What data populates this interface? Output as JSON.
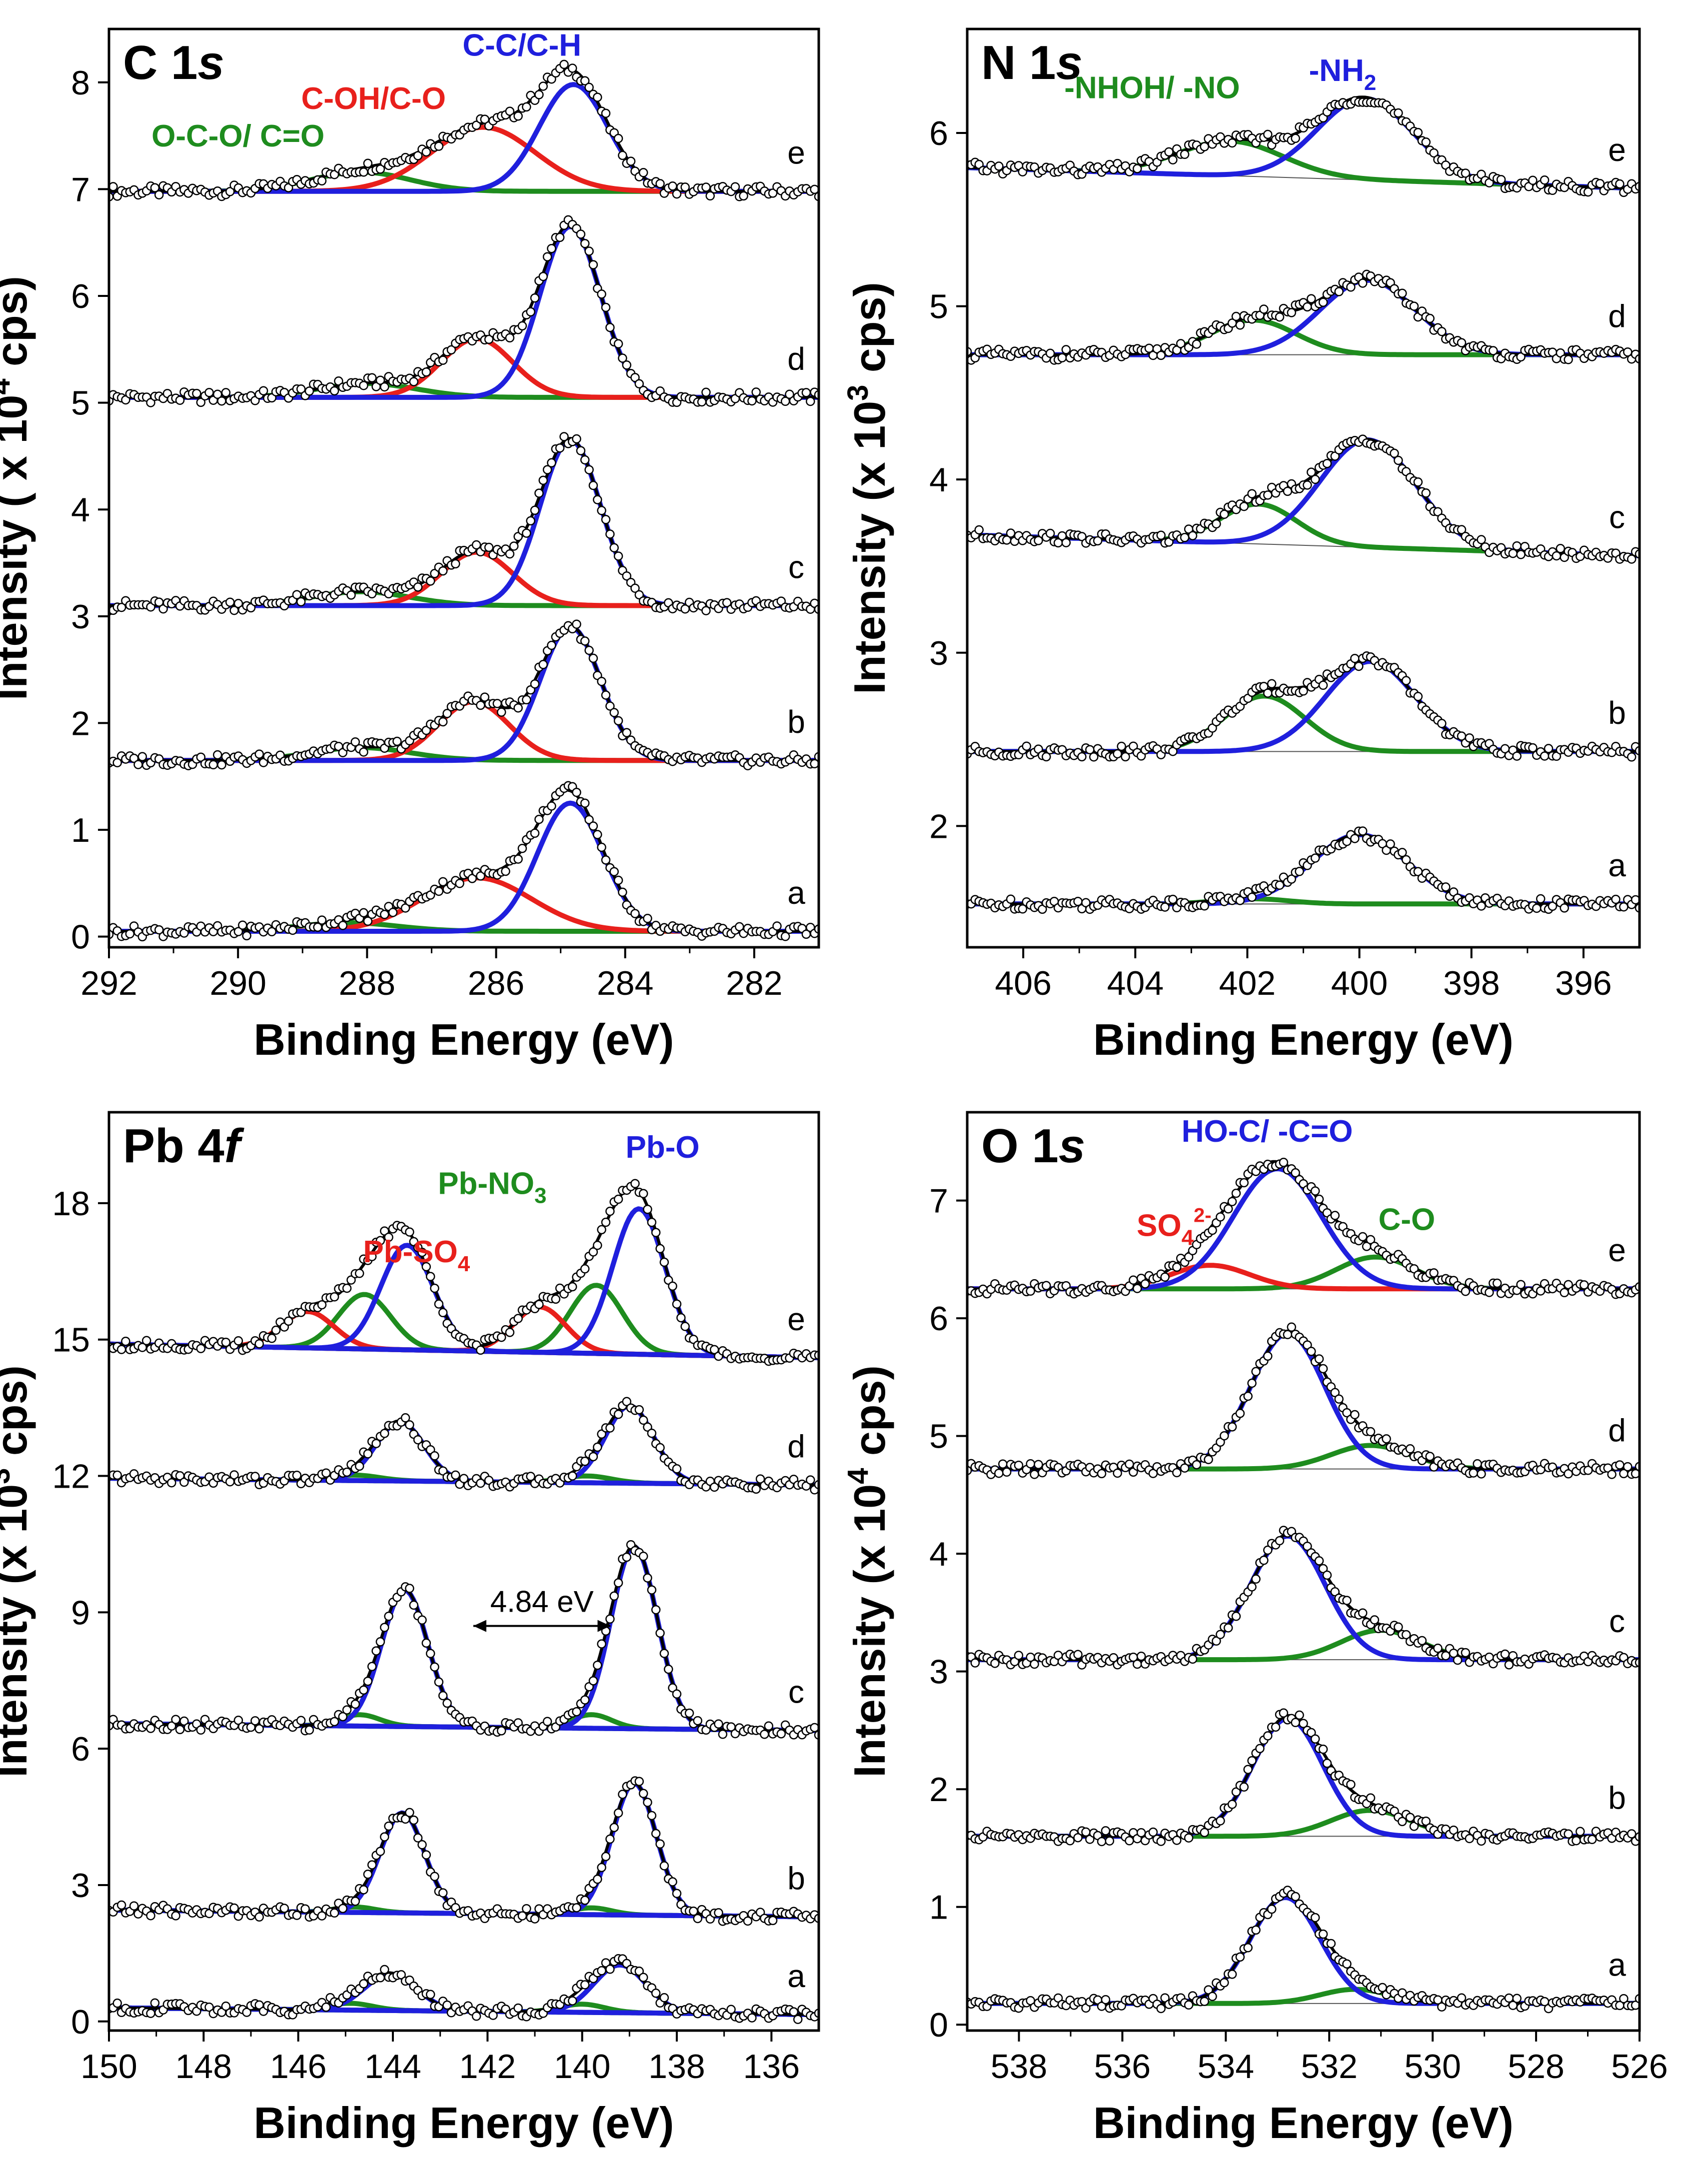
{
  "colors": {
    "raw": "#000000",
    "envelope": "#000000",
    "blue": "#1f1fdd",
    "red": "#e8201c",
    "green": "#1e8c1e",
    "baseline_thin": "#555555"
  },
  "chart_data": [
    {
      "id": "c1s",
      "type": "line",
      "title_main": "C 1",
      "title_suffix": "s",
      "xlabel": "Binding Energy (eV)",
      "ylabel": "Intensity ( x 10",
      "ylabel_sup": "4",
      "ylabel_tail": " cps)",
      "xlim": [
        292,
        281
      ],
      "ylim": [
        -0.1,
        8.5
      ],
      "xticks": [
        "292",
        "290",
        "288",
        "286",
        "284",
        "282"
      ],
      "xtick_values": [
        292,
        290,
        288,
        286,
        284,
        282
      ],
      "yticks": [
        "0",
        "1",
        "2",
        "3",
        "4",
        "5",
        "6",
        "7",
        "8"
      ],
      "ytick_values": [
        0,
        1,
        2,
        3,
        4,
        5,
        6,
        7,
        8
      ],
      "peak_labels": [
        {
          "text": "C-C/C-H",
          "color": "blue",
          "x": 285.6,
          "y": 8.25
        },
        {
          "text": "C-OH/C-O",
          "color": "red",
          "x": 287.9,
          "y": 7.75
        },
        {
          "text": "O-C-O/ C=O",
          "color": "green",
          "x": 290.0,
          "y": 7.4
        }
      ],
      "series": [
        {
          "name": "e",
          "baseline": 6.98,
          "slope": 0.0,
          "peaks": [
            {
              "component": "C-C/C-H",
              "center": 284.8,
              "height": 1.0,
              "fwhm": 1.25,
              "color": "blue"
            },
            {
              "component": "C-OH/C-O",
              "center": 286.2,
              "height": 0.6,
              "fwhm": 1.9,
              "color": "red"
            },
            {
              "component": "O-C-O/ C=O",
              "center": 288.1,
              "height": 0.18,
              "fwhm": 1.8,
              "color": "green"
            }
          ]
        },
        {
          "name": "d",
          "baseline": 5.05,
          "slope": 0.0,
          "peaks": [
            {
              "component": "C-C/C-H",
              "center": 284.85,
              "height": 1.6,
              "fwhm": 1.1,
              "color": "blue"
            },
            {
              "component": "C-OH/C-O",
              "center": 286.3,
              "height": 0.55,
              "fwhm": 1.3,
              "color": "red"
            },
            {
              "component": "O-C-O/ C=O",
              "center": 288.0,
              "height": 0.13,
              "fwhm": 1.8,
              "color": "green"
            }
          ]
        },
        {
          "name": "c",
          "baseline": 3.1,
          "slope": 0.0,
          "peaks": [
            {
              "component": "C-C/C-H",
              "center": 284.85,
              "height": 1.55,
              "fwhm": 1.1,
              "color": "blue"
            },
            {
              "component": "C-OH/C-O",
              "center": 286.3,
              "height": 0.5,
              "fwhm": 1.3,
              "color": "red"
            },
            {
              "component": "O-C-O/ C=O",
              "center": 288.1,
              "height": 0.13,
              "fwhm": 1.8,
              "color": "green"
            }
          ]
        },
        {
          "name": "b",
          "baseline": 1.65,
          "slope": 0.0,
          "peaks": [
            {
              "component": "C-C/C-H",
              "center": 284.85,
              "height": 1.25,
              "fwhm": 1.1,
              "color": "blue"
            },
            {
              "component": "C-OH/C-O",
              "center": 286.35,
              "height": 0.55,
              "fwhm": 1.3,
              "color": "red"
            },
            {
              "component": "O-C-O/ C=O",
              "center": 288.1,
              "height": 0.12,
              "fwhm": 1.8,
              "color": "green"
            }
          ]
        },
        {
          "name": "a",
          "baseline": 0.05,
          "slope": 0.0,
          "peaks": [
            {
              "component": "C-C/C-H",
              "center": 284.85,
              "height": 1.2,
              "fwhm": 1.2,
              "color": "blue"
            },
            {
              "component": "C-OH/C-O",
              "center": 286.3,
              "height": 0.5,
              "fwhm": 2.0,
              "color": "red"
            },
            {
              "component": "O-C-O/ C=O",
              "center": 288.3,
              "height": 0.08,
              "fwhm": 1.8,
              "color": "green"
            }
          ]
        }
      ]
    },
    {
      "id": "n1s",
      "type": "line",
      "title_main": "N 1",
      "title_suffix": "s",
      "xlabel": "Binding Energy (eV)",
      "ylabel": "Intensity (x 10",
      "ylabel_sup": "3",
      "ylabel_tail": " cps)",
      "xlim": [
        407,
        395
      ],
      "ylim": [
        1.3,
        6.6
      ],
      "xticks": [
        "406",
        "404",
        "402",
        "400",
        "398",
        "396"
      ],
      "xtick_values": [
        406,
        404,
        402,
        400,
        398,
        396
      ],
      "yticks": [
        "2",
        "3",
        "4",
        "5",
        "6"
      ],
      "ytick_values": [
        2,
        3,
        4,
        5,
        6
      ],
      "peak_labels": [
        {
          "text": "-NHOH/ -NO",
          "color": "green",
          "x": 403.7,
          "y": 6.2
        },
        {
          "text": "-NH",
          "sub": "2",
          "color": "blue",
          "x": 400.3,
          "y": 6.3
        }
      ],
      "series": [
        {
          "name": "e",
          "baseline": 5.68,
          "slope": 0.01,
          "peaks": [
            {
              "component": "-NH2",
              "center": 399.9,
              "height": 0.47,
              "fwhm": 2.0,
              "color": "blue"
            },
            {
              "component": "-NHOH/ -NO",
              "center": 402.3,
              "height": 0.2,
              "fwhm": 2.2,
              "color": "green"
            }
          ]
        },
        {
          "name": "d",
          "baseline": 4.72,
          "slope": 0.0,
          "peaks": [
            {
              "component": "-NH2",
              "center": 399.85,
              "height": 0.43,
              "fwhm": 2.0,
              "color": "blue"
            },
            {
              "component": "-NHOH/ -NO",
              "center": 401.9,
              "height": 0.2,
              "fwhm": 1.8,
              "color": "green"
            }
          ]
        },
        {
          "name": "c",
          "baseline": 3.56,
          "slope": 0.01,
          "peaks": [
            {
              "component": "-NH2",
              "center": 399.85,
              "height": 0.62,
              "fwhm": 2.0,
              "color": "blue"
            },
            {
              "component": "-NHOH/ -NO",
              "center": 401.8,
              "height": 0.23,
              "fwhm": 1.6,
              "color": "green"
            }
          ]
        },
        {
          "name": "b",
          "baseline": 2.43,
          "slope": 0.0,
          "peaks": [
            {
              "component": "-NH2",
              "center": 399.8,
              "height": 0.52,
              "fwhm": 1.9,
              "color": "blue"
            },
            {
              "component": "-NHOH/ -NO",
              "center": 401.7,
              "height": 0.32,
              "fwhm": 1.7,
              "color": "green"
            }
          ]
        },
        {
          "name": "a",
          "baseline": 1.55,
          "slope": 0.0,
          "peaks": [
            {
              "component": "-NH2",
              "center": 400.0,
              "height": 0.4,
              "fwhm": 2.0,
              "color": "blue"
            },
            {
              "component": "-NHOH/ -NO",
              "center": 401.9,
              "height": 0.03,
              "fwhm": 1.5,
              "color": "green"
            }
          ]
        }
      ]
    },
    {
      "id": "pb4f",
      "type": "line",
      "title_main": "Pb 4",
      "title_suffix": "f",
      "xlabel": "Binding Energy (eV)",
      "ylabel": "Intensity (x 10",
      "ylabel_sup": "3",
      "ylabel_tail": " cps)",
      "xlim": [
        150,
        135
      ],
      "ylim": [
        -0.2,
        20.0
      ],
      "xticks": [
        "150",
        "148",
        "146",
        "144",
        "142",
        "140",
        "138",
        "136"
      ],
      "xtick_values": [
        150,
        148,
        146,
        144,
        142,
        140,
        138,
        136
      ],
      "yticks": [
        "0",
        "3",
        "6",
        "9",
        "12",
        "15",
        "18"
      ],
      "ytick_values": [
        0,
        3,
        6,
        9,
        12,
        15,
        18
      ],
      "peak_labels": [
        {
          "text": "Pb-O",
          "color": "blue",
          "x": 138.3,
          "y": 19.0
        },
        {
          "text": "Pb-NO",
          "sub": "3",
          "color": "green",
          "x": 141.9,
          "y": 18.2
        },
        {
          "text": "Pb-SO",
          "sub": "4",
          "color": "red",
          "x": 143.5,
          "y": 16.7
        }
      ],
      "annotation": {
        "text": "4.84 eV",
        "from": 142.3,
        "to": 139.4,
        "y": 8.7
      },
      "series": [
        {
          "name": "e",
          "baseline": 14.6,
          "slope": 0.02,
          "peaks": [
            {
              "component": "Pb-O",
              "center": 143.7,
              "height": 2.3,
              "fwhm": 1.3,
              "color": "blue"
            },
            {
              "component": "Pb-O",
              "center": 138.8,
              "height": 3.2,
              "fwhm": 1.3,
              "color": "blue"
            },
            {
              "component": "Pb-NO3",
              "center": 144.6,
              "height": 1.2,
              "fwhm": 1.3,
              "color": "green"
            },
            {
              "component": "Pb-NO3",
              "center": 139.7,
              "height": 1.5,
              "fwhm": 1.3,
              "color": "green"
            },
            {
              "component": "Pb-SO4",
              "center": 145.8,
              "height": 0.8,
              "fwhm": 1.3,
              "color": "red"
            },
            {
              "component": "Pb-SO4",
              "center": 140.9,
              "height": 1.0,
              "fwhm": 1.3,
              "color": "red"
            }
          ]
        },
        {
          "name": "d",
          "baseline": 11.8,
          "slope": 0.01,
          "peaks": [
            {
              "component": "Pb-O",
              "center": 143.85,
              "height": 1.3,
              "fwhm": 1.2,
              "color": "blue"
            },
            {
              "component": "Pb-O",
              "center": 139.0,
              "height": 1.7,
              "fwhm": 1.2,
              "color": "blue"
            },
            {
              "component": "Pb-NO3",
              "center": 144.8,
              "height": 0.12,
              "fwhm": 1.2,
              "color": "green"
            },
            {
              "component": "Pb-NO3",
              "center": 139.9,
              "height": 0.15,
              "fwhm": 1.2,
              "color": "green"
            }
          ]
        },
        {
          "name": "c",
          "baseline": 6.4,
          "slope": 0.01,
          "peaks": [
            {
              "component": "Pb-O",
              "center": 143.75,
              "height": 3.0,
              "fwhm": 1.15,
              "color": "blue"
            },
            {
              "component": "Pb-O",
              "center": 138.9,
              "height": 4.0,
              "fwhm": 1.15,
              "color": "blue"
            },
            {
              "component": "Pb-NO3",
              "center": 144.7,
              "height": 0.25,
              "fwhm": 1.0,
              "color": "green"
            },
            {
              "component": "Pb-NO3",
              "center": 139.8,
              "height": 0.3,
              "fwhm": 1.0,
              "color": "green"
            }
          ]
        },
        {
          "name": "b",
          "baseline": 2.3,
          "slope": 0.01,
          "peaks": [
            {
              "component": "Pb-O",
              "center": 143.8,
              "height": 2.2,
              "fwhm": 1.1,
              "color": "blue"
            },
            {
              "component": "Pb-O",
              "center": 138.9,
              "height": 2.9,
              "fwhm": 1.1,
              "color": "blue"
            },
            {
              "component": "Pb-NO3",
              "center": 144.8,
              "height": 0.12,
              "fwhm": 1.0,
              "color": "green"
            },
            {
              "component": "Pb-NO3",
              "center": 139.8,
              "height": 0.15,
              "fwhm": 1.0,
              "color": "green"
            }
          ]
        },
        {
          "name": "a",
          "baseline": 0.15,
          "slope": 0.01,
          "peaks": [
            {
              "component": "Pb-O",
              "center": 144.05,
              "height": 0.8,
              "fwhm": 1.3,
              "color": "blue"
            },
            {
              "component": "Pb-O",
              "center": 139.2,
              "height": 1.05,
              "fwhm": 1.3,
              "color": "blue"
            },
            {
              "component": "Pb-NO3",
              "center": 144.9,
              "height": 0.15,
              "fwhm": 1.1,
              "color": "green"
            },
            {
              "component": "Pb-NO3",
              "center": 140.0,
              "height": 0.18,
              "fwhm": 1.1,
              "color": "green"
            }
          ]
        }
      ]
    },
    {
      "id": "o1s",
      "type": "line",
      "title_main": "O 1",
      "title_suffix": "s",
      "xlabel": "Binding Energy (eV)",
      "ylabel": "Intensity (x 10",
      "ylabel_sup": "4",
      "ylabel_tail": " cps)",
      "xlim": [
        539,
        526
      ],
      "ylim": [
        -0.05,
        7.75
      ],
      "xticks": [
        "538",
        "536",
        "534",
        "532",
        "530",
        "528",
        "526"
      ],
      "xtick_values": [
        538,
        536,
        534,
        532,
        530,
        528,
        526
      ],
      "yticks": [
        "0",
        "1",
        "2",
        "3",
        "4",
        "5",
        "6",
        "7"
      ],
      "ytick_values": [
        0,
        1,
        2,
        3,
        4,
        5,
        6,
        7
      ],
      "peak_labels": [
        {
          "text": "HO-C/ -C=O",
          "color": "blue",
          "x": 533.2,
          "y": 7.5
        },
        {
          "text": "SO",
          "sub": "4",
          "sup": "2-",
          "color": "red",
          "x": 535.0,
          "y": 6.7
        },
        {
          "text": "C-O",
          "color": "green",
          "x": 530.5,
          "y": 6.75
        }
      ],
      "series": [
        {
          "name": "e",
          "baseline": 6.25,
          "slope": 0.0,
          "peaks": [
            {
              "component": "HO-C/ -C=O",
              "center": 533.0,
              "height": 1.02,
              "fwhm": 2.0,
              "color": "blue"
            },
            {
              "component": "SO4 2-",
              "center": 534.3,
              "height": 0.2,
              "fwhm": 1.8,
              "color": "red"
            },
            {
              "component": "C-O",
              "center": 531.1,
              "height": 0.27,
              "fwhm": 1.8,
              "color": "green"
            }
          ]
        },
        {
          "name": "d",
          "baseline": 4.72,
          "slope": 0.0,
          "peaks": [
            {
              "component": "HO-C/ -C=O",
              "center": 532.8,
              "height": 1.15,
              "fwhm": 1.7,
              "color": "blue"
            },
            {
              "component": "C-O",
              "center": 531.2,
              "height": 0.2,
              "fwhm": 1.8,
              "color": "green"
            }
          ]
        },
        {
          "name": "c",
          "baseline": 3.1,
          "slope": 0.0,
          "peaks": [
            {
              "component": "HO-C/ -C=O",
              "center": 532.8,
              "height": 1.05,
              "fwhm": 1.7,
              "color": "blue"
            },
            {
              "component": "C-O",
              "center": 531.0,
              "height": 0.25,
              "fwhm": 1.8,
              "color": "green"
            }
          ]
        },
        {
          "name": "b",
          "baseline": 1.6,
          "slope": 0.0,
          "peaks": [
            {
              "component": "HO-C/ -C=O",
              "center": 532.8,
              "height": 1.0,
              "fwhm": 1.6,
              "color": "blue"
            },
            {
              "component": "C-O",
              "center": 531.2,
              "height": 0.22,
              "fwhm": 1.8,
              "color": "green"
            }
          ]
        },
        {
          "name": "a",
          "baseline": 0.18,
          "slope": 0.0,
          "peaks": [
            {
              "component": "HO-C/ -C=O",
              "center": 532.85,
              "height": 0.9,
              "fwhm": 1.6,
              "color": "blue"
            },
            {
              "component": "C-O",
              "center": 531.5,
              "height": 0.12,
              "fwhm": 1.6,
              "color": "green"
            }
          ]
        }
      ]
    }
  ]
}
